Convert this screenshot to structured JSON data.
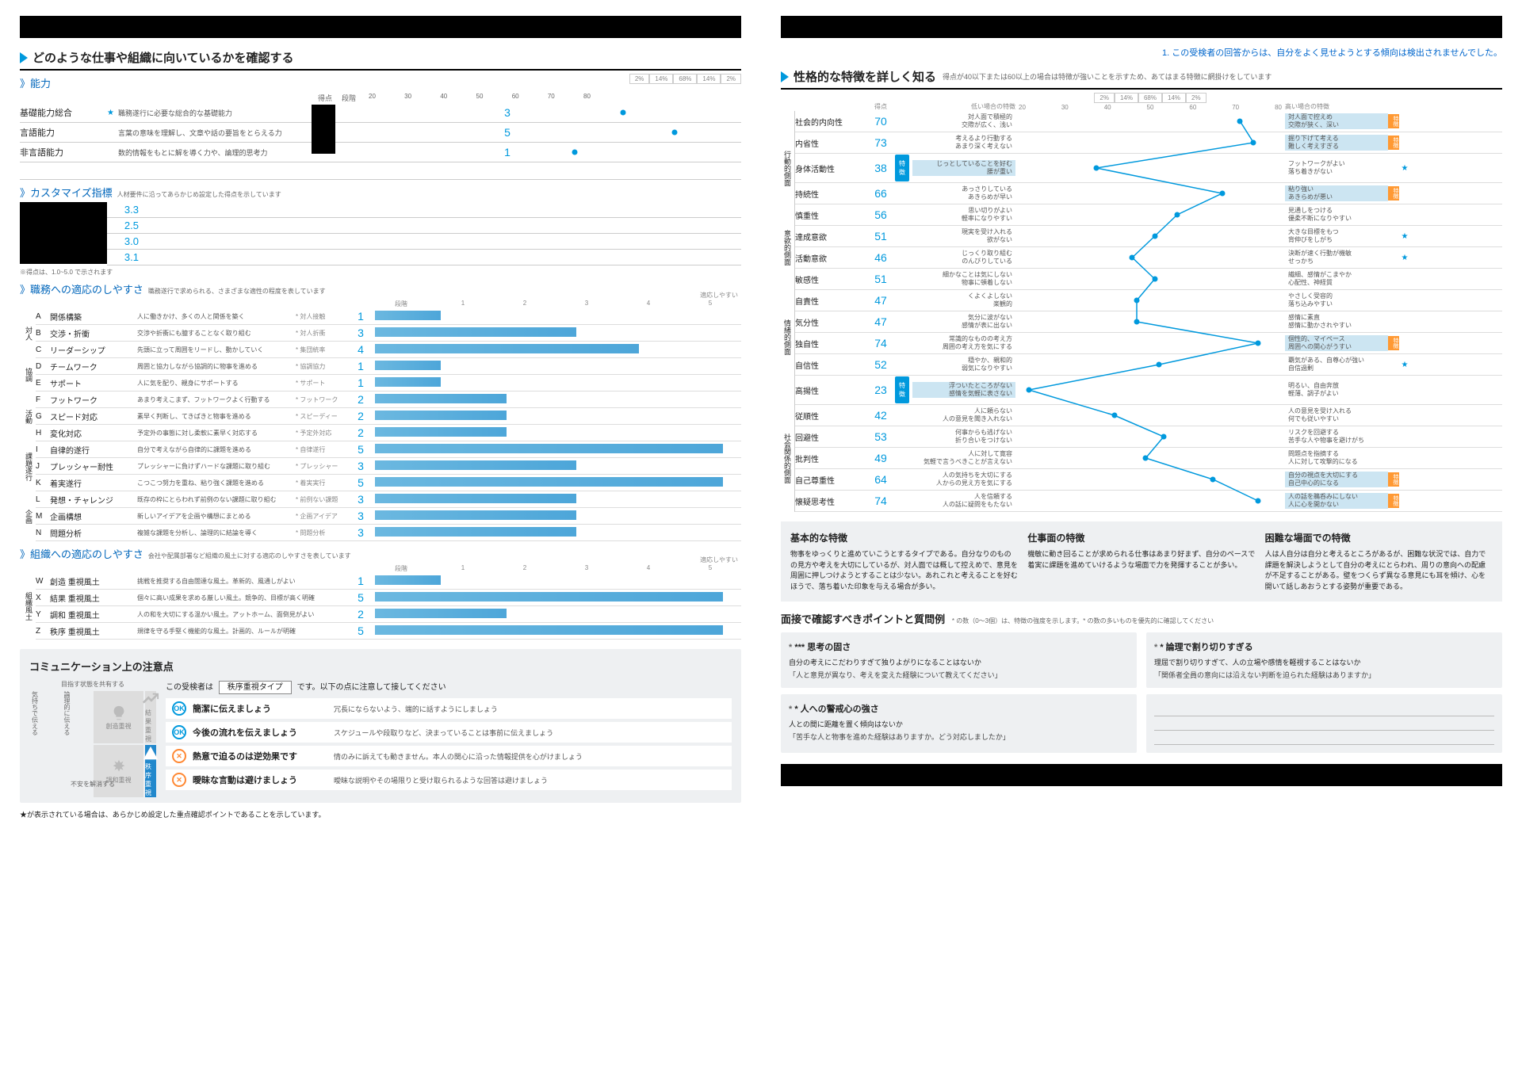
{
  "blue_notice": "1. この受検者の回答からは、自分をよく見せようとする傾向は検出されませんでした。",
  "left": {
    "section1_title": "どのような仕事や組織に向いているかを確認する",
    "ability_h": "能力",
    "score_label": "得点",
    "level_label": "段階",
    "pct_labels": [
      "2%",
      "14%",
      "68%",
      "14%",
      "2%"
    ],
    "axis_ticks": [
      "20",
      "30",
      "40",
      "50",
      "60",
      "70",
      "80"
    ],
    "abilities": [
      {
        "name": "基礎能力総合",
        "star": true,
        "desc": "職務遂行に必要な総合的な基礎能力",
        "score": "3",
        "dot": 48
      },
      {
        "name": "言語能力",
        "star": false,
        "desc": "言葉の意味を理解し、文章や話の要旨をとらえる力",
        "score": "5",
        "dot": 62
      },
      {
        "name": "非言語能力",
        "star": false,
        "desc": "数的情報をもとに解を導く力や、論理的思考力",
        "score": "1",
        "dot": 35
      }
    ],
    "custom_h": "カスタマイズ指標",
    "custom_desc": "人材要件に沿ってあらかじめ設定した得点を示しています",
    "custom_vals": [
      "3.3",
      "2.5",
      "3.0",
      "3.1"
    ],
    "custom_note": "※得点は、1.0~5.0 で示されます",
    "adapt_job_h": "職務への適応のしやすさ",
    "adapt_job_desc": "職務遂行で求められる、さまざまな適性の程度を表しています",
    "adapt_easy": "適応しやすい",
    "adapt_cats": [
      {
        "cat": "対人",
        "rows": [
          {
            "code": "A",
            "name": "関係構築",
            "desc": "人に働きかけ、多くの人と関係を築く",
            "tag": "* 対人接触",
            "lvl": 1,
            "bar": 18
          },
          {
            "code": "B",
            "name": "交渉・折衝",
            "desc": "交渉や折衝にも臆することなく取り組む",
            "tag": "* 対人折衝",
            "lvl": 3,
            "bar": 55
          },
          {
            "code": "C",
            "name": "リーダーシップ",
            "desc": "先頭に立って周囲をリードし、動かしていく",
            "tag": "* 集団統率",
            "lvl": 4,
            "bar": 72
          }
        ]
      },
      {
        "cat": "協調",
        "rows": [
          {
            "code": "D",
            "name": "チームワーク",
            "desc": "周囲と協力しながら協調的に物事を進める",
            "tag": "* 協調協力",
            "lvl": 1,
            "bar": 18
          },
          {
            "code": "E",
            "name": "サポート",
            "desc": "人に気を配り、親身にサポートする",
            "tag": "* サポート",
            "lvl": 1,
            "bar": 18
          }
        ]
      },
      {
        "cat": "活動",
        "rows": [
          {
            "code": "F",
            "name": "フットワーク",
            "desc": "あまり考えこまず、フットワークよく行動する",
            "tag": "* フットワーク",
            "lvl": 2,
            "bar": 36
          },
          {
            "code": "G",
            "name": "スピード対応",
            "desc": "素早く判断し、てきぱきと物事を進める",
            "tag": "* スピーディー",
            "lvl": 2,
            "bar": 36
          },
          {
            "code": "H",
            "name": "変化対応",
            "desc": "予定外の事態に対し柔軟に素早く対応する",
            "tag": "* 予定外対応",
            "lvl": 2,
            "bar": 36
          }
        ]
      },
      {
        "cat": "課題遂行",
        "rows": [
          {
            "code": "I",
            "name": "自律的遂行",
            "desc": "自分で考えながら自律的に課題を進める",
            "tag": "* 自律遂行",
            "lvl": 5,
            "bar": 95
          },
          {
            "code": "J",
            "name": "プレッシャー耐性",
            "desc": "プレッシャーに負けずハードな課題に取り組む",
            "tag": "* プレッシャー",
            "lvl": 3,
            "bar": 55
          },
          {
            "code": "K",
            "name": "着実遂行",
            "desc": "こつこつ努力を重ね、粘り強く課題を進める",
            "tag": "* 着実実行",
            "lvl": 5,
            "bar": 95
          }
        ]
      },
      {
        "cat": "企画",
        "rows": [
          {
            "code": "L",
            "name": "発想・チャレンジ",
            "desc": "既存の枠にとらわれず前例のない課題に取り組む",
            "tag": "* 前例ない課題",
            "lvl": 3,
            "bar": 55
          },
          {
            "code": "M",
            "name": "企画構想",
            "desc": "新しいアイデアを企画や構想にまとめる",
            "tag": "* 企画アイデア",
            "lvl": 3,
            "bar": 55
          },
          {
            "code": "N",
            "name": "問題分析",
            "desc": "複雑な課題を分析し、論理的に結論を導く",
            "tag": "* 問題分析",
            "lvl": 3,
            "bar": 55
          }
        ]
      }
    ],
    "adapt_org_h": "組織への適応のしやすさ",
    "adapt_org_desc": "会社や配属部署など組織の風土に対する適応のしやすさを表しています",
    "org_rows": [
      {
        "code": "W",
        "name": "創造 重視風土",
        "desc": "挑戦を推奨する自由闊達な風土。革新的、風通しがよい",
        "lvl": 1,
        "bar": 18
      },
      {
        "code": "X",
        "name": "結果 重視風土",
        "desc": "個々に高い成果を求める厳しい風土。競争的、目標が高く明確",
        "lvl": 5,
        "bar": 95
      },
      {
        "code": "Y",
        "name": "調和 重視風土",
        "desc": "人の和を大切にする温かい風土。アットホーム、面倒見がよい",
        "lvl": 2,
        "bar": 36
      },
      {
        "code": "Z",
        "name": "秩序 重視風土",
        "desc": "規律を守る手堅く機能的な風土。計画的、ルールが明確",
        "lvl": 5,
        "bar": 95
      }
    ],
    "comm_title": "コミュニケーション上の注意点",
    "comm_quad_top": "目指す状態を共有する",
    "comm_quad_left": "気持ちで伝える",
    "comm_quad_right": "論理的に伝える",
    "comm_quad_bottom": "不安を解消する",
    "comm_cells": [
      "創造重視",
      "結果重視",
      "調和重視",
      "秩序重視"
    ],
    "comm_type_pre": "この受検者は",
    "comm_type": "秩序重視タイプ",
    "comm_type_post": "です。以下の点に注意して接してください",
    "comm_tips": [
      {
        "ok": true,
        "head": "簡潔に伝えましょう",
        "body": "冗長にならないよう、端的に話すようにしましょう"
      },
      {
        "ok": true,
        "head": "今後の流れを伝えましょう",
        "body": "スケジュールや段取りなど、決まっていることは事前に伝えましょう"
      },
      {
        "ok": false,
        "head": "熱意で迫るのは逆効果です",
        "body": "情のみに訴えても動きません。本人の関心に沿った情報提供を心がけましょう"
      },
      {
        "ok": false,
        "head": "曖昧な言動は避けましょう",
        "body": "曖昧な説明やその場限りと受け取られるような回答は避けましょう"
      }
    ],
    "star_note": "★が表示されている場合は、あらかじめ設定した重点確認ポイントであることを示しています。"
  },
  "right": {
    "section_title": "性格的な特徴を詳しく知る",
    "section_sub": "得点が40以下または60以上の場合は特徴が強いことを示すため、あてはまる特徴に網掛けをしています",
    "score_label": "得点",
    "low_label": "低い場合の特徴",
    "high_label": "高い場合の特徴",
    "axis_ticks": [
      "20",
      "30",
      "40",
      "50",
      "60",
      "70",
      "80"
    ],
    "pct_labels": [
      "2%",
      "14%",
      "68%",
      "14%",
      "2%"
    ],
    "cats": [
      {
        "cat": "行動的側面",
        "rows": [
          {
            "name": "社会的内向性",
            "score": 70,
            "low": "対人面で積極的\\n交際が広く、浅い",
            "high": "対人面で控えめ\\n交際が狭く、深い",
            "hl": "high",
            "badge": "特徴"
          },
          {
            "name": "内省性",
            "score": 73,
            "low": "考えるより行動する\\nあまり深く考えない",
            "high": "掘り下げて考える\\n難しく考えすぎる",
            "hl": "high",
            "badge": "特徴"
          },
          {
            "name": "身体活動性",
            "score": 38,
            "low": "じっとしていることを好む\\n腰が重い",
            "high": "フットワークがよい\\n落ち着きがない",
            "hl": "low",
            "badge": "特徴",
            "star": true
          },
          {
            "name": "持続性",
            "score": 66,
            "low": "あっさりしている\\nあきらめが早い",
            "high": "粘り強い\\nあきらめが悪い",
            "hl": "high",
            "badge": "特徴"
          },
          {
            "name": "慎重性",
            "score": 56,
            "low": "思い切りがよい\\n軽率になりやすい",
            "high": "見通しをつける\\n優柔不断になりやすい",
            "hl": ""
          }
        ]
      },
      {
        "cat": "意欲的側面",
        "rows": [
          {
            "name": "達成意欲",
            "score": 51,
            "low": "現実を受け入れる\\n欲がない",
            "high": "大きな目標をもつ\\n背伸びをしがち",
            "hl": "",
            "star": true
          },
          {
            "name": "活動意欲",
            "score": 46,
            "low": "じっくり取り組む\\nのんびりしている",
            "high": "決断が速く行動が機敏\\nせっかち",
            "hl": "",
            "star": true
          }
        ]
      },
      {
        "cat": "情緒的側面",
        "rows": [
          {
            "name": "敏感性",
            "score": 51,
            "low": "細かなことは気にしない\\n物事に頓着しない",
            "high": "繊細、感情がこまやか\\n心配性、神経質",
            "hl": ""
          },
          {
            "name": "自責性",
            "score": 47,
            "low": "くよくよしない\\n楽観的",
            "high": "やさしく受容的\\n落ち込みやすい",
            "hl": ""
          },
          {
            "name": "気分性",
            "score": 47,
            "low": "気分に波がない\\n感情が表に出ない",
            "high": "感情に素直\\n感情に動かされやすい",
            "hl": ""
          },
          {
            "name": "独自性",
            "score": 74,
            "low": "常識的なものの考え方\\n周囲の考え方を気にする",
            "high": "個性的、マイペース\\n周囲への関心がうすい",
            "hl": "high",
            "badge": "特徴"
          },
          {
            "name": "自信性",
            "score": 52,
            "low": "穏やか、親和的\\n弱気になりやすい",
            "high": "覇気がある、自尊心が強い\\n自信過剰",
            "hl": "",
            "star": true
          },
          {
            "name": "高揚性",
            "score": 23,
            "low": "浮ついたところがない\\n感情を気軽に表さない",
            "high": "明るい、自由奔放\\n軽薄、調子がよい",
            "hl": "low",
            "badge": "特徴"
          }
        ]
      },
      {
        "cat": "社会関係的側面",
        "rows": [
          {
            "name": "従順性",
            "score": 42,
            "low": "人に頼らない\\n人の意見を聞き入れない",
            "high": "人の意見を受け入れる\\n何でも従いやすい",
            "hl": ""
          },
          {
            "name": "回避性",
            "score": 53,
            "low": "何事からも逃げない\\n折り合いをつけない",
            "high": "リスクを回避する\\n苦手な人や物事を避けがち",
            "hl": ""
          },
          {
            "name": "批判性",
            "score": 49,
            "low": "人に対して寛容\\n気軽で言うべきことが言えない",
            "high": "問題点を指摘する\\n人に対して攻撃的になる",
            "hl": ""
          },
          {
            "name": "自己尊重性",
            "score": 64,
            "low": "人の気持ちを大切にする\\n人からの見え方を気にする",
            "high": "自分の視点を大切にする\\n自己中心的になる",
            "hl": "high",
            "badge": "特徴"
          },
          {
            "name": "懐疑思考性",
            "score": 74,
            "low": "人を信頼する\\n人の話に疑問をもたない",
            "high": "人の話を鵜呑みにしない\\n人に心を開かない",
            "hl": "high",
            "badge": "特徴"
          }
        ]
      }
    ],
    "feat": [
      {
        "h": "基本的な特徴",
        "p": "物事をゆっくりと進めていこうとするタイプである。自分なりのものの見方や考えを大切にしているが、対人面では概して控えめで、意見を周囲に押しつけようとすることは少ない。あれこれと考えることを好むほうで、落ち着いた印象を与える場合が多い。"
      },
      {
        "h": "仕事面の特徴",
        "p": "機敏に動き回ることが求められる仕事はあまり好まず、自分のペースで着実に課題を進めていけるような場面で力を発揮することが多い。"
      },
      {
        "h": "困難な場面での特徴",
        "p": "人は人自分は自分と考えるところがあるが、困難な状況では、自力で課題を解決しようとして自分の考えにとらわれ、周りの意向への配慮が不足することがある。壁をつくらず異なる意見にも耳を傾け、心を開いて話しあおうとする姿勢が重要である。"
      }
    ],
    "interview_h": "面接で確認すべきポイントと質問例",
    "interview_sub": "* の数（0～3個）は、特徴の強度を示します。* の数の多いものを優先的に確認してください",
    "qboxes": [
      {
        "stars": "***",
        "h": "思考の固さ",
        "q1": "自分の考えにこだわりすぎて独りよがりになることはないか",
        "q2": "「人と意見が異なり、考えを変えた経験について教えてください」"
      },
      {
        "stars": "*",
        "h": "論理で割り切りすぎる",
        "q1": "理屈で割り切りすぎて、人の立場や感情を軽視することはないか",
        "q2": "「関係者全員の意向には沿えない判断を迫られた経験はありますか」"
      },
      {
        "stars": "*",
        "h": "人への警戒心の強さ",
        "q1": "人との間に距離を置く傾向はないか",
        "q2": "「苦手な人と物事を進めた経験はありますか。どう対応しましたか」"
      }
    ]
  }
}
